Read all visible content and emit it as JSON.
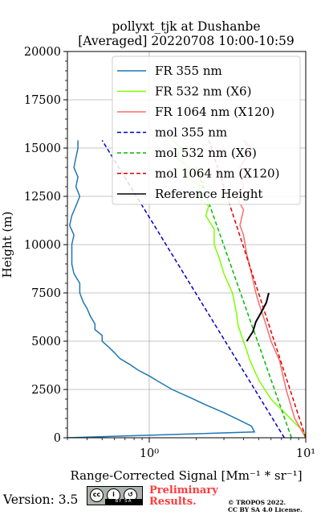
{
  "chart_data": {
    "type": "line",
    "title_line1": "pollyxt_tjk at Dushanbe",
    "title_line2": "[Averaged] 20220708 10:00-10:59",
    "xlabel": "Range-Corrected Signal [Mm⁻¹ * sr⁻¹]",
    "ylabel": "Height (m)",
    "xscale": "log",
    "xlim": [
      0.3,
      10
    ],
    "ylim": [
      0,
      20000
    ],
    "yticks": [
      0,
      2500,
      5000,
      7500,
      10000,
      12500,
      15000,
      17500,
      20000
    ],
    "ytick_labels": [
      "0",
      "2500",
      "5000",
      "7500",
      "10000",
      "12500",
      "15000",
      "17500",
      "20000"
    ],
    "xticks": [
      1,
      10
    ],
    "xtick_labels": [
      "10⁰",
      "10¹"
    ],
    "grid": true,
    "legend_position": "top-right",
    "series": [
      {
        "name": "FR 355 nm",
        "color": "#1f77b4",
        "style": "solid",
        "points": [
          [
            0.3,
            0
          ],
          [
            4.7,
            300
          ],
          [
            4.5,
            600
          ],
          [
            3.8,
            900
          ],
          [
            3.0,
            1300
          ],
          [
            2.3,
            1700
          ],
          [
            1.8,
            2100
          ],
          [
            1.4,
            2500
          ],
          [
            1.15,
            2900
          ],
          [
            1.0,
            3200
          ],
          [
            0.85,
            3500
          ],
          [
            0.75,
            3800
          ],
          [
            0.65,
            4100
          ],
          [
            0.6,
            4400
          ],
          [
            0.55,
            4700
          ],
          [
            0.5,
            5000
          ],
          [
            0.5,
            5300
          ],
          [
            0.45,
            5600
          ],
          [
            0.45,
            5900
          ],
          [
            0.42,
            6300
          ],
          [
            0.4,
            6700
          ],
          [
            0.38,
            7000
          ],
          [
            0.36,
            7500
          ],
          [
            0.36,
            8000
          ],
          [
            0.33,
            8500
          ],
          [
            0.32,
            9000
          ],
          [
            0.32,
            9500
          ],
          [
            0.32,
            10000
          ],
          [
            0.33,
            10500
          ],
          [
            0.31,
            11000
          ],
          [
            0.32,
            11500
          ],
          [
            0.34,
            12000
          ],
          [
            0.36,
            12500
          ],
          [
            0.34,
            13000
          ],
          [
            0.35,
            13500
          ],
          [
            0.33,
            14000
          ],
          [
            0.34,
            14500
          ],
          [
            0.35,
            15000
          ],
          [
            0.35,
            15400
          ]
        ]
      },
      {
        "name": "FR 532 nm (X6)",
        "color": "#7fff00",
        "style": "solid",
        "points": [
          [
            10,
            0
          ],
          [
            10,
            200
          ],
          [
            6.0,
            2000
          ],
          [
            5.0,
            3000
          ],
          [
            4.4,
            4000
          ],
          [
            4.0,
            5000
          ],
          [
            3.7,
            5800
          ],
          [
            3.6,
            6500
          ],
          [
            3.4,
            7500
          ],
          [
            3.0,
            8500
          ],
          [
            2.8,
            9300
          ],
          [
            2.6,
            10000
          ],
          [
            2.6,
            10800
          ],
          [
            2.3,
            11500
          ],
          [
            2.4,
            12000
          ],
          [
            2.0,
            12500
          ],
          [
            2.2,
            13000
          ],
          [
            1.7,
            13500
          ],
          [
            1.8,
            14000
          ],
          [
            1.5,
            14500
          ],
          [
            1.6,
            15000
          ],
          [
            1.4,
            15400
          ]
        ]
      },
      {
        "name": "FR 1064 nm (X120)",
        "color": "#ff6a6a",
        "style": "solid",
        "points": [
          [
            10,
            0
          ],
          [
            8.5,
            1000
          ],
          [
            7.5,
            2500
          ],
          [
            6.8,
            4000
          ],
          [
            6.0,
            5000
          ],
          [
            5.5,
            6000
          ],
          [
            5.0,
            7000
          ],
          [
            4.8,
            7500
          ],
          [
            4.5,
            8500
          ],
          [
            4.2,
            9500
          ],
          [
            4.0,
            10500
          ],
          [
            3.8,
            11000
          ],
          [
            4.0,
            11800
          ],
          [
            3.6,
            12500
          ],
          [
            4.0,
            13000
          ],
          [
            3.8,
            14000
          ],
          [
            4.5,
            15000
          ],
          [
            4.0,
            15400
          ]
        ]
      },
      {
        "name": "mol 355 nm",
        "color": "#0000cc",
        "style": "dashed",
        "points": [
          [
            7.3,
            0
          ],
          [
            0.5,
            15400
          ]
        ]
      },
      {
        "name": "mol 532 nm (X6)",
        "color": "#00bb00",
        "style": "dashed",
        "points": [
          [
            8.1,
            0
          ],
          [
            2.0,
            14000
          ]
        ]
      },
      {
        "name": "mol 1064 nm (X120)",
        "color": "#dd0000",
        "style": "dashed",
        "points": [
          [
            10,
            0
          ],
          [
            2.4,
            15400
          ]
        ]
      },
      {
        "name": "Reference Height",
        "color": "#000000",
        "style": "solid",
        "points": [
          [
            4.2,
            5000
          ],
          [
            4.6,
            5500
          ],
          [
            4.8,
            6000
          ],
          [
            5.2,
            6500
          ],
          [
            5.6,
            7000
          ],
          [
            5.8,
            7500
          ]
        ]
      }
    ]
  },
  "footer": {
    "version_label": "Version: 3.5",
    "cc_badge_text": "BY SA",
    "preliminary_line1": "Preliminary",
    "preliminary_line2": "Results.",
    "copyright_line1": "© TROPOS 2022.",
    "copyright_line2": "CC BY SA 4.0 License."
  }
}
